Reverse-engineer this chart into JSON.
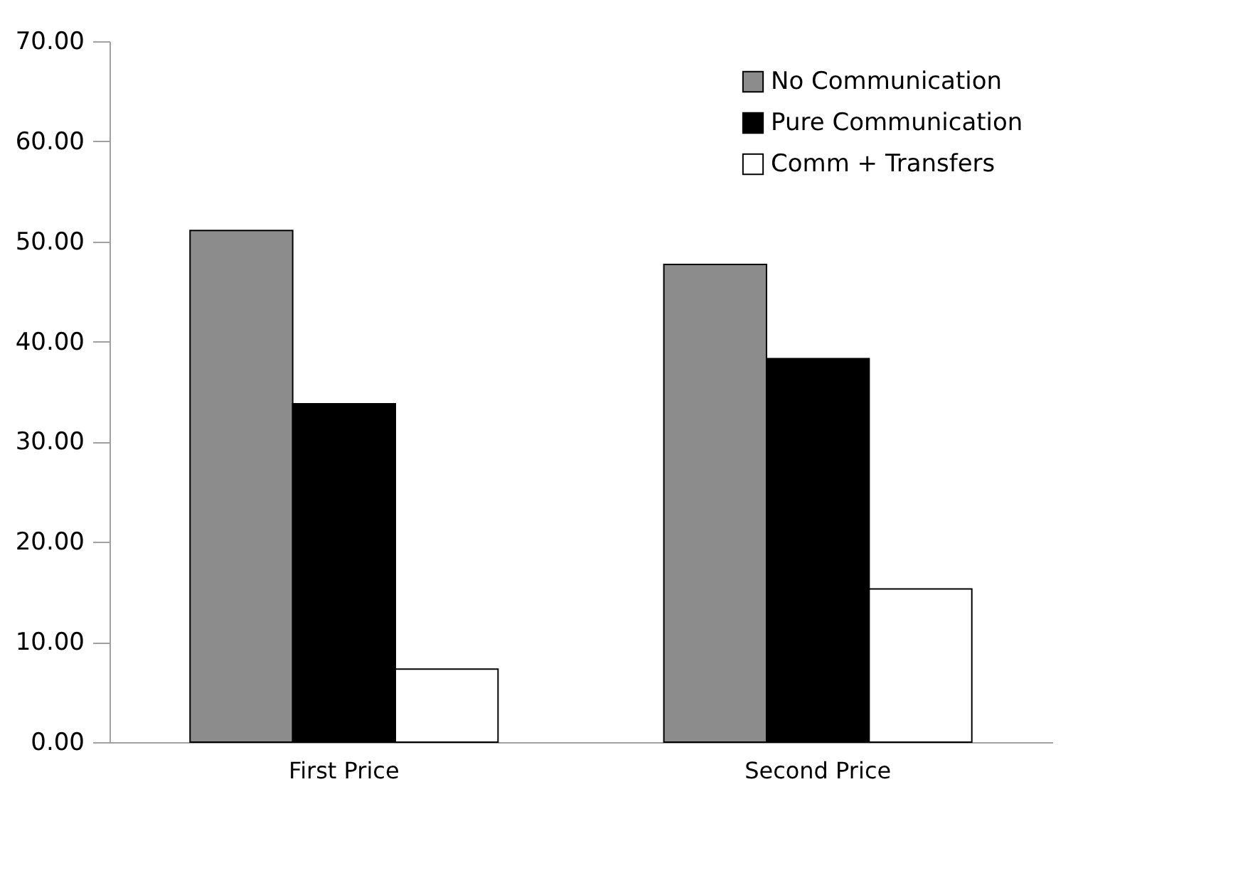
{
  "chart_data": {
    "type": "bar",
    "categories": [
      "First Price",
      "Second Price"
    ],
    "series": [
      {
        "name": "No Communication",
        "color": "#8c8c8c",
        "values": [
          51.1,
          47.7
        ]
      },
      {
        "name": "Pure Communication",
        "color": "#000000",
        "values": [
          33.8,
          38.3
        ]
      },
      {
        "name": "Comm + Transfers",
        "color": "#ffffff",
        "values": [
          7.3,
          15.3
        ]
      }
    ],
    "ylim": [
      0,
      70
    ],
    "yticks": [
      {
        "value": 0,
        "label": "0.00"
      },
      {
        "value": 10,
        "label": "10.00"
      },
      {
        "value": 20,
        "label": "20.00"
      },
      {
        "value": 30,
        "label": "30.00"
      },
      {
        "value": 40,
        "label": "40.00"
      },
      {
        "value": 50,
        "label": "50.00"
      },
      {
        "value": 60,
        "label": "60.00"
      },
      {
        "value": 70,
        "label": "70.00"
      }
    ],
    "grid": false,
    "legend": "top right"
  }
}
